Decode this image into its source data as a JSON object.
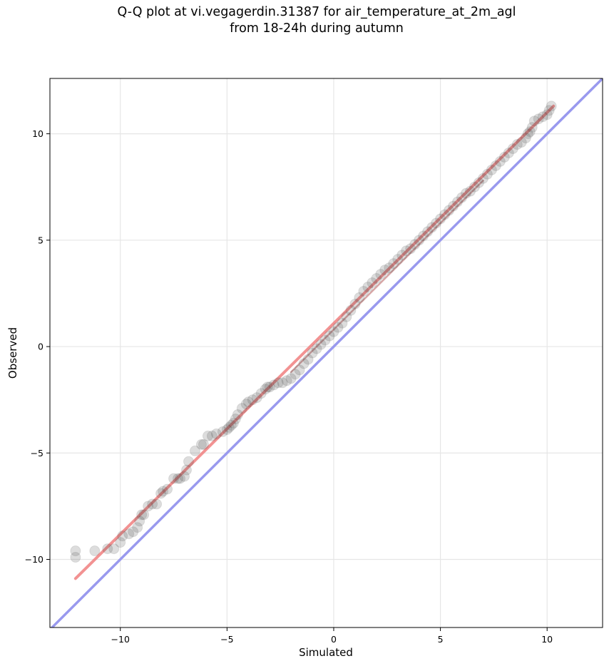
{
  "chart_data": {
    "type": "scatter",
    "title_lines": [
      "Q-Q plot at vi.vegagerdin.31387 for air_temperature_at_2m_agl",
      "from 18-24h during autumn"
    ],
    "xlabel": "Simulated",
    "ylabel": "Observed",
    "xlim": [
      -13.3,
      12.6
    ],
    "ylim": [
      -13.2,
      12.6
    ],
    "xticks": [
      -10,
      -5,
      0,
      5,
      10
    ],
    "yticks": [
      -10,
      -5,
      0,
      5,
      10
    ],
    "xtick_labels": [
      "−10",
      "−5",
      "0",
      "5",
      "10"
    ],
    "ytick_labels": [
      "−10",
      "−5",
      "0",
      "5",
      "10"
    ],
    "grid": true,
    "series": [
      {
        "kind": "quantile_points",
        "color": "#444444",
        "x": [
          -12.1,
          -12.1,
          -11.2,
          -10.6,
          -10.3,
          -10.0,
          -9.9,
          -9.6,
          -9.4,
          -9.2,
          -9.1,
          -9.0,
          -8.9,
          -8.7,
          -8.5,
          -8.3,
          -8.1,
          -8.0,
          -7.8,
          -7.5,
          -7.3,
          -7.2,
          -7.0,
          -6.9,
          -6.8,
          -6.5,
          -6.2,
          -6.1,
          -5.9,
          -5.7,
          -5.5,
          -5.2,
          -5.0,
          -4.9,
          -4.8,
          -4.7,
          -4.6,
          -4.5,
          -4.3,
          -4.1,
          -4.0,
          -3.8,
          -3.6,
          -3.4,
          -3.2,
          -3.1,
          -3.0,
          -2.8,
          -2.6,
          -2.4,
          -2.2,
          -2.0,
          -1.8,
          -1.6,
          -1.4,
          -1.2,
          -1.0,
          -0.8,
          -0.6,
          -0.4,
          -0.2,
          0.0,
          0.2,
          0.4,
          0.6,
          0.8,
          1.0,
          1.2,
          1.4,
          1.6,
          1.8,
          2.0,
          2.2,
          2.4,
          2.6,
          2.8,
          3.0,
          3.2,
          3.4,
          3.6,
          3.8,
          4.0,
          4.2,
          4.4,
          4.6,
          4.8,
          5.0,
          5.2,
          5.4,
          5.6,
          5.8,
          6.0,
          6.2,
          6.4,
          6.6,
          6.8,
          7.0,
          7.2,
          7.4,
          7.6,
          7.8,
          8.0,
          8.2,
          8.4,
          8.6,
          8.8,
          9.0,
          9.1,
          9.2,
          9.3,
          9.4,
          9.6,
          9.8,
          10.0,
          10.1,
          10.2
        ],
        "y": [
          -9.9,
          -9.6,
          -9.6,
          -9.5,
          -9.5,
          -9.2,
          -8.9,
          -8.8,
          -8.7,
          -8.5,
          -8.2,
          -7.9,
          -7.9,
          -7.5,
          -7.4,
          -7.4,
          -6.9,
          -6.8,
          -6.7,
          -6.2,
          -6.2,
          -6.2,
          -6.1,
          -5.8,
          -5.4,
          -4.9,
          -4.6,
          -4.6,
          -4.2,
          -4.2,
          -4.1,
          -4.0,
          -3.9,
          -3.8,
          -3.7,
          -3.6,
          -3.4,
          -3.2,
          -2.9,
          -2.7,
          -2.6,
          -2.5,
          -2.4,
          -2.2,
          -2.0,
          -1.9,
          -1.9,
          -1.8,
          -1.7,
          -1.7,
          -1.6,
          -1.5,
          -1.3,
          -1.1,
          -0.8,
          -0.6,
          -0.3,
          -0.1,
          0.1,
          0.3,
          0.5,
          0.7,
          0.9,
          1.1,
          1.4,
          1.7,
          2.0,
          2.3,
          2.6,
          2.8,
          3.0,
          3.2,
          3.4,
          3.6,
          3.7,
          3.9,
          4.1,
          4.3,
          4.5,
          4.6,
          4.8,
          5.0,
          5.2,
          5.4,
          5.6,
          5.8,
          6.0,
          6.2,
          6.4,
          6.6,
          6.8,
          7.0,
          7.2,
          7.3,
          7.5,
          7.7,
          7.9,
          8.1,
          8.3,
          8.5,
          8.7,
          8.9,
          9.1,
          9.3,
          9.5,
          9.6,
          9.8,
          10.0,
          10.1,
          10.3,
          10.6,
          10.7,
          10.8,
          10.9,
          11.1,
          11.3
        ]
      },
      {
        "kind": "fit_line",
        "color": "#f08080",
        "x": [
          -12.1,
          10.3
        ],
        "y": [
          -10.9,
          11.3
        ]
      },
      {
        "kind": "reference_line",
        "color": "#9999ee",
        "x": [
          -13.3,
          12.6
        ],
        "y": [
          -13.3,
          12.6
        ]
      }
    ]
  }
}
